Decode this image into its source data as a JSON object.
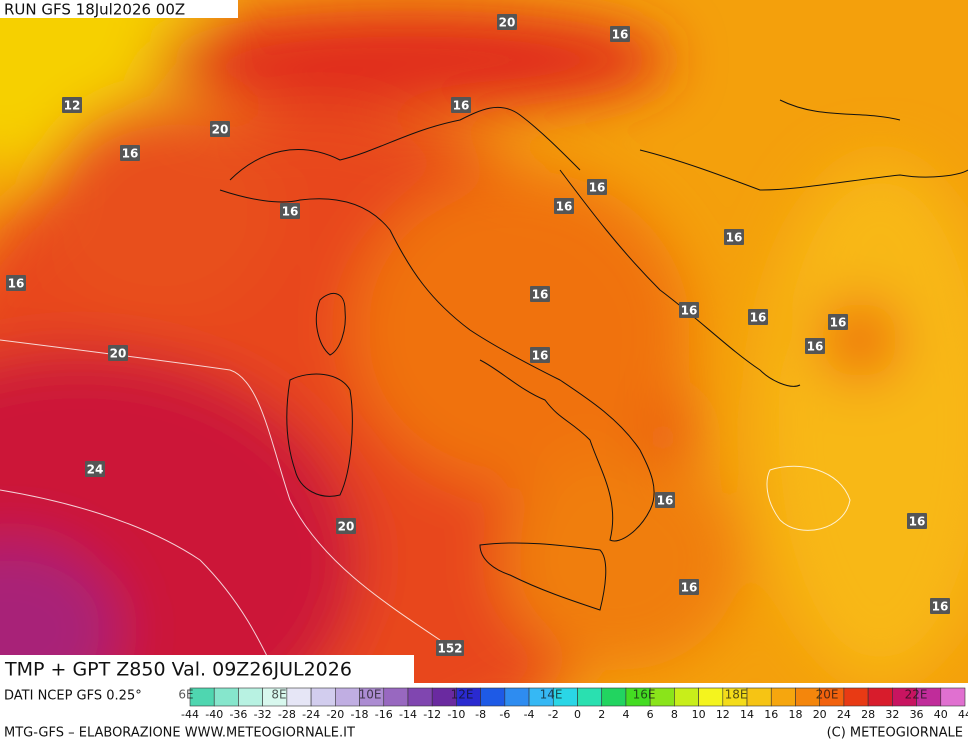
{
  "header": {
    "run": "RUN GFS 18Jul2026 00Z"
  },
  "map": {
    "contour_labels": [
      20,
      16,
      12,
      20,
      16,
      16,
      16,
      16,
      16,
      16,
      16,
      16,
      16,
      16,
      16,
      16,
      20,
      16,
      24,
      16,
      20,
      16,
      16,
      16,
      152
    ],
    "lon_labels": [
      "6E",
      "8E",
      "10E",
      "12E",
      "14E",
      "16E",
      "18E",
      "20E",
      "22E"
    ]
  },
  "caption": {
    "product": "TMP + GPT Z850 Val. 09Z26JUL2026",
    "source": "DATI NCEP GFS 0.25°"
  },
  "legend": {
    "levels": [
      -44,
      -40,
      -36,
      -32,
      -28,
      -24,
      -20,
      -18,
      -16,
      -14,
      -12,
      -10,
      -8,
      -6,
      -4,
      -2,
      0,
      2,
      4,
      6,
      8,
      10,
      12,
      14,
      16,
      18,
      20,
      24,
      28,
      32,
      36,
      40,
      44
    ],
    "colors": [
      "#4fd6b0",
      "#86e6cc",
      "#b8f2e2",
      "#d8f8ee",
      "#e6e6f6",
      "#d2cdee",
      "#c0aee2",
      "#ac8cd2",
      "#9868c0",
      "#8046b0",
      "#6a2aa0",
      "#2a2ad0",
      "#1e5ae6",
      "#2e8cf0",
      "#36b8f4",
      "#2ad6e6",
      "#2ae0b0",
      "#22d460",
      "#44dc22",
      "#8ae41a",
      "#c8ee1a",
      "#f4f41e",
      "#f4dc1a",
      "#f6c414",
      "#f6a60e",
      "#f4860c",
      "#f2620e",
      "#e83a14",
      "#d81c2c",
      "#c81460",
      "#c02c9a",
      "#e070d0"
    ]
  },
  "footer": {
    "left": "MTG-GFS – ELABORAZIONE WWW.METEOGIORNALE.IT",
    "right": "(C) METEOGIORNALE"
  }
}
